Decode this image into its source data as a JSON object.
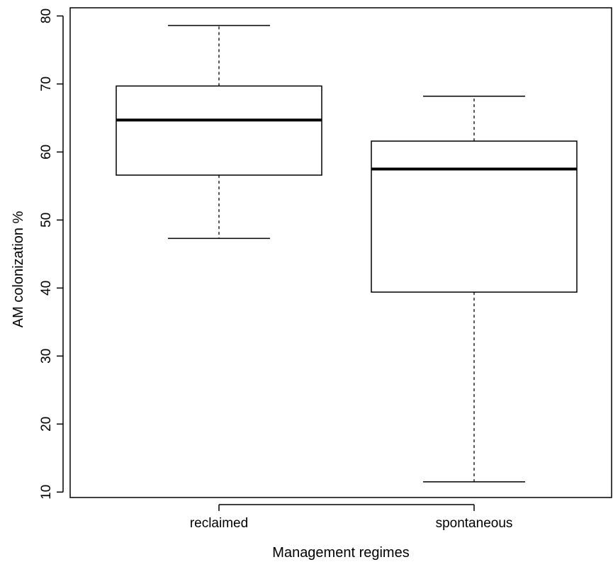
{
  "chart_data": {
    "type": "boxplot",
    "xlabel": "Management regimes",
    "ylabel": "AM colonization %",
    "ylim": [
      9.2,
      81.2
    ],
    "yticks": [
      10,
      20,
      30,
      40,
      50,
      60,
      70,
      80
    ],
    "categories": [
      "reclaimed",
      "spontaneous"
    ],
    "boxes": [
      {
        "category": "reclaimed",
        "min": 47.3,
        "q1": 56.6,
        "median": 64.7,
        "q3": 69.7,
        "max": 78.6
      },
      {
        "category": "spontaneous",
        "min": 11.5,
        "q1": 39.4,
        "median": 57.5,
        "q3": 61.6,
        "max": 68.2
      }
    ],
    "grid": false,
    "legend": "none"
  }
}
